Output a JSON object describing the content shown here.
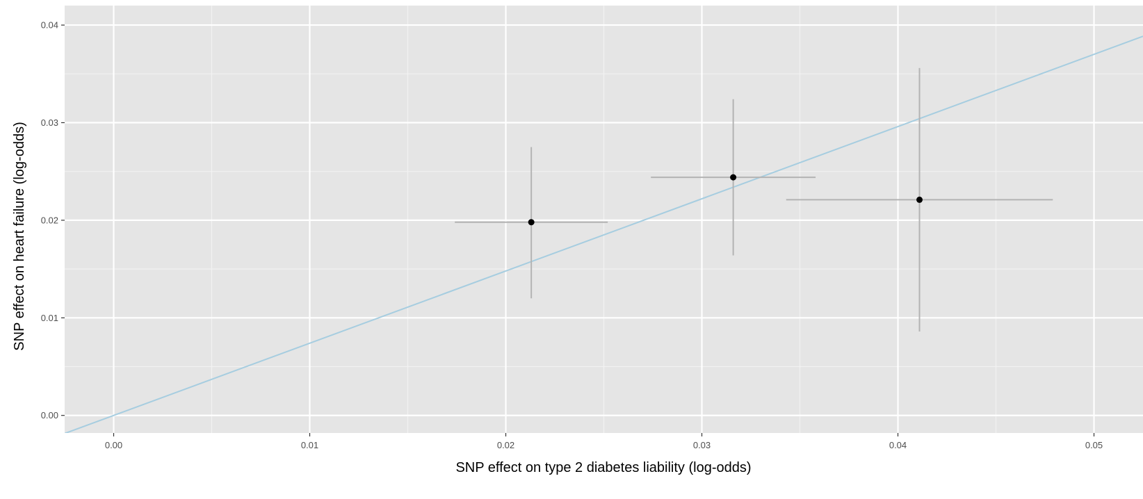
{
  "chart_data": {
    "type": "scatter",
    "xlabel": "SNP effect on type 2 diabetes liability (log-odds)",
    "ylabel": "SNP effect on heart failure (log-odds)",
    "xlim": [
      -0.0025,
      0.0525
    ],
    "ylim": [
      -0.0018,
      0.042
    ],
    "x_ticks": [
      0.0,
      0.01,
      0.02,
      0.03,
      0.04,
      0.05
    ],
    "x_tick_labels": [
      "0.00",
      "0.01",
      "0.02",
      "0.03",
      "0.04",
      "0.05"
    ],
    "y_ticks": [
      0.0,
      0.01,
      0.02,
      0.03,
      0.04
    ],
    "y_tick_labels": [
      "0.00",
      "0.01",
      "0.02",
      "0.03",
      "0.04"
    ],
    "grid": true,
    "points": [
      {
        "x": 0.0213,
        "y": 0.0198,
        "x_low": 0.0174,
        "x_high": 0.0252,
        "y_low": 0.012,
        "y_high": 0.0275
      },
      {
        "x": 0.0316,
        "y": 0.0244,
        "x_low": 0.0274,
        "x_high": 0.0358,
        "y_low": 0.0164,
        "y_high": 0.0324
      },
      {
        "x": 0.0411,
        "y": 0.0221,
        "x_low": 0.0343,
        "x_high": 0.0479,
        "y_low": 0.0086,
        "y_high": 0.0356
      }
    ],
    "fit_line": {
      "intercept": 0.0,
      "slope": 0.74
    },
    "colors": {
      "panel": "#e5e5e5",
      "grid_major": "#ffffff",
      "grid_minor": "#f2f2f2",
      "fit_line": "#a6cde0",
      "error_bar": "#b3b3b3",
      "point": "#000000"
    }
  }
}
